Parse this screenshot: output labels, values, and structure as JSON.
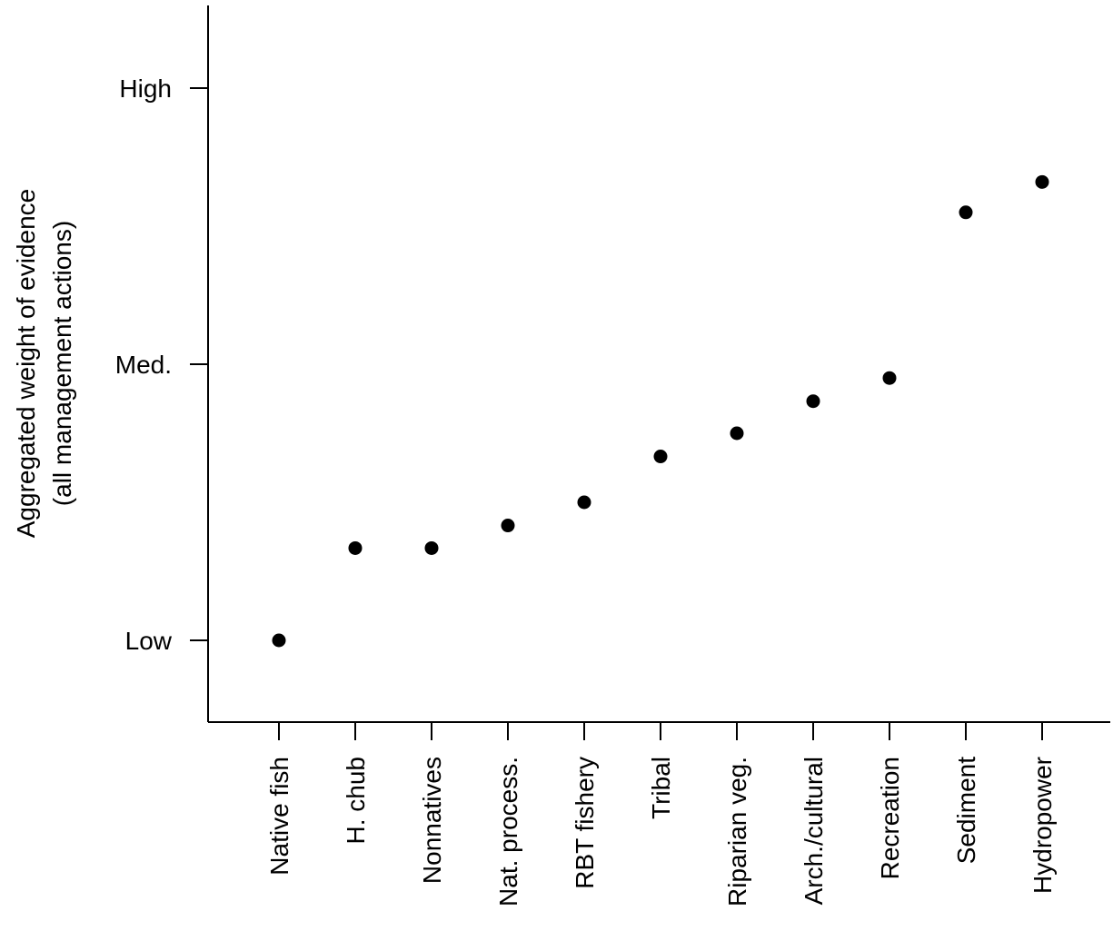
{
  "chart_data": {
    "type": "scatter",
    "categories": [
      "Native fish",
      "H. chub",
      "Nonnatives",
      "Nat. process.",
      "RBT fishery",
      "Tribal",
      "Riparian veg.",
      "Arch./cultural",
      "Recreation",
      "Sediment",
      "Hydropower"
    ],
    "values": [
      0.0,
      0.167,
      0.167,
      0.208,
      0.25,
      0.333,
      0.375,
      0.433,
      0.475,
      0.775,
      0.83
    ],
    "y_ticks": [
      {
        "value": 0,
        "label": "Low"
      },
      {
        "value": 0.5,
        "label": "Med."
      },
      {
        "value": 1,
        "label": "High"
      }
    ],
    "ylabel_line1": "Aggregated weight of evidence",
    "ylabel_line2": "(all management actions)",
    "xlabel": "",
    "title": "",
    "ylim": [
      -0.147,
      1.15
    ],
    "grid": false,
    "legend": "none"
  }
}
